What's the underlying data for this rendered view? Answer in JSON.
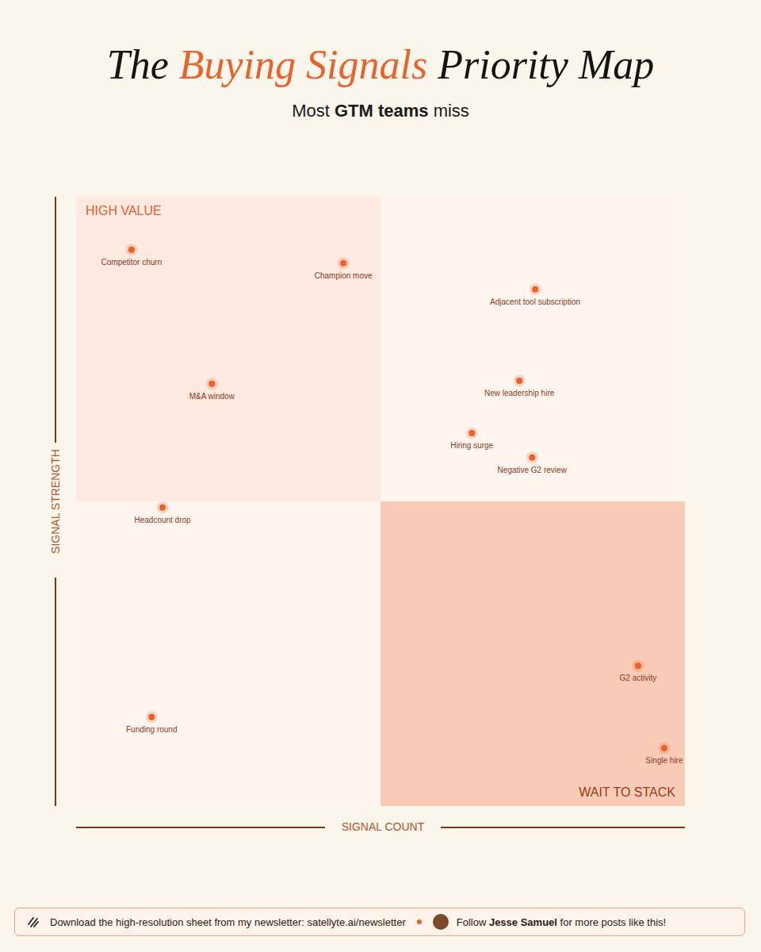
{
  "chart_data": {
    "type": "scatter",
    "title": "The Buying Signals Priority Map",
    "title_highlight": "Buying Signals",
    "subtitle": "Most GTM teams miss",
    "subtitle_bold": "GTM teams",
    "x_label": "SIGNAL COUNT",
    "y_label": "SIGNAL STRENGTH",
    "labels": [
      "Competitor churn",
      "Champion move",
      "Adjacent tool subscription",
      "M&A window",
      "New leadership hire",
      "Hiring surge",
      "Negative G2 review",
      "Headcount drop",
      "G2 activity",
      "Single hire",
      "Funding round"
    ],
    "x": [
      9.1,
      43.9,
      75.4,
      22.3,
      72.8,
      65.0,
      74.9,
      14.2,
      92.3,
      96.6,
      12.4
    ],
    "y": [
      91.3,
      89.1,
      84.8,
      69.3,
      69.8,
      61.2,
      57.2,
      49.0,
      23.0,
      9.5,
      14.6
    ],
    "color": "#e8622c",
    "xlim": [
      0,
      100
    ],
    "ylim": [
      0,
      100
    ],
    "xticks": [
      0,
      50,
      100
    ],
    "yticks": [
      0,
      50,
      100
    ],
    "tick_labels": false,
    "grid": false,
    "quadrants": [
      {
        "label": "HIGH VALUE",
        "x": [
          0,
          50
        ],
        "y": [
          50,
          100
        ],
        "color": "#fde9e0"
      },
      {
        "x": [
          50,
          100
        ],
        "y": [
          50,
          100
        ],
        "color": "#fef5ef"
      },
      {
        "x": [
          0,
          50
        ],
        "y": [
          0,
          50
        ],
        "color": "#fef5ef"
      },
      {
        "label": "WAIT TO STACK",
        "x": [
          50,
          100
        ],
        "y": [
          0,
          50
        ],
        "color": "#f9cab5"
      }
    ]
  },
  "footer": {
    "left": "Download the high-resolution sheet from my newsletter: satellyte.ai/newsletter",
    "right": "Follow Jesse Samuel for more posts like this!",
    "right_bold": "Jesse Samuel"
  }
}
